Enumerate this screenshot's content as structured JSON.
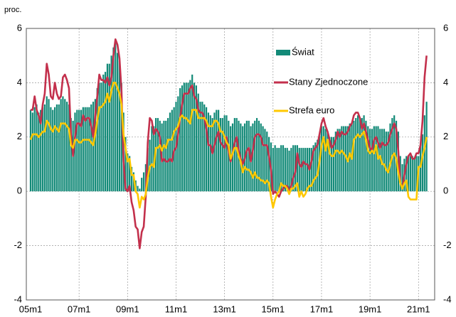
{
  "chart_data": {
    "type": "bar-line",
    "unit_label": "proc.",
    "categories": [
      "05m1",
      null,
      null,
      null,
      null,
      null,
      null,
      null,
      null,
      null,
      null,
      null,
      null,
      null,
      null,
      null,
      null,
      null,
      null,
      null,
      null,
      null,
      null,
      null,
      "07m1",
      null,
      null,
      null,
      null,
      null,
      null,
      null,
      null,
      null,
      null,
      null,
      null,
      null,
      null,
      null,
      null,
      null,
      null,
      null,
      null,
      null,
      null,
      null,
      "09m1",
      null,
      null,
      null,
      null,
      null,
      null,
      null,
      null,
      null,
      null,
      null,
      null,
      null,
      null,
      null,
      null,
      null,
      null,
      null,
      null,
      null,
      null,
      null,
      "11m1",
      null,
      null,
      null,
      null,
      null,
      null,
      null,
      null,
      null,
      null,
      null,
      null,
      null,
      null,
      null,
      null,
      null,
      null,
      null,
      null,
      null,
      null,
      null,
      "13m1",
      null,
      null,
      null,
      null,
      null,
      null,
      null,
      null,
      null,
      null,
      null,
      null,
      null,
      null,
      null,
      null,
      null,
      null,
      null,
      null,
      null,
      null,
      null,
      "15m1",
      null,
      null,
      null,
      null,
      null,
      null,
      null,
      null,
      null,
      null,
      null,
      null,
      null,
      null,
      null,
      null,
      null,
      null,
      null,
      null,
      null,
      null,
      null,
      "17m1",
      null,
      null,
      null,
      null,
      null,
      null,
      null,
      null,
      null,
      null,
      null,
      null,
      null,
      null,
      null,
      null,
      null,
      null,
      null,
      null,
      null,
      null,
      null,
      "19m1",
      null,
      null,
      null,
      null,
      null,
      null,
      null,
      null,
      null,
      null,
      null,
      null,
      null,
      null,
      null,
      null,
      null,
      null,
      null,
      null,
      null,
      null,
      null,
      "21m1",
      null,
      null,
      null,
      null
    ],
    "series": [
      {
        "name": "Świat",
        "kind": "bar",
        "color": "#138a78",
        "values": [
          3.0,
          2.9,
          3.1,
          3.2,
          2.9,
          3.0,
          3.1,
          3.2,
          3.5,
          3.4,
          3.1,
          3.0,
          3.1,
          3.2,
          3.2,
          3.4,
          3.5,
          3.4,
          3.3,
          3.2,
          2.7,
          2.6,
          2.9,
          3.0,
          3.0,
          3.0,
          3.1,
          3.1,
          3.1,
          3.1,
          3.2,
          3.3,
          3.4,
          3.8,
          4.0,
          4.0,
          4.3,
          4.4,
          4.7,
          4.7,
          5.0,
          5.3,
          5.5,
          5.1,
          4.8,
          4.0,
          2.9,
          2.0,
          1.4,
          1.3,
          0.9,
          0.7,
          0.4,
          0.2,
          0.1,
          0.5,
          0.7,
          1.0,
          1.6,
          1.9,
          2.4,
          2.4,
          2.7,
          2.7,
          2.6,
          2.5,
          2.6,
          2.6,
          2.7,
          2.9,
          3.0,
          3.1,
          3.3,
          3.5,
          3.8,
          3.9,
          4.0,
          4.0,
          4.0,
          4.1,
          4.3,
          4.0,
          3.9,
          3.6,
          3.3,
          3.3,
          3.2,
          3.1,
          2.9,
          2.8,
          2.7,
          2.9,
          3.0,
          3.0,
          2.7,
          2.7,
          2.8,
          2.8,
          2.6,
          2.4,
          2.5,
          2.7,
          2.7,
          2.6,
          2.5,
          2.4,
          2.5,
          2.6,
          2.6,
          2.4,
          2.5,
          2.6,
          2.7,
          2.6,
          2.5,
          2.4,
          2.3,
          2.2,
          2.0,
          1.8,
          1.6,
          1.7,
          1.6,
          1.6,
          1.7,
          1.7,
          1.6,
          1.6,
          1.5,
          1.6,
          1.7,
          1.7,
          1.7,
          1.6,
          1.6,
          1.6,
          1.6,
          1.6,
          1.6,
          1.6,
          1.7,
          1.8,
          1.9,
          2.1,
          2.4,
          2.4,
          2.3,
          2.2,
          2.0,
          2.0,
          2.0,
          2.2,
          2.3,
          2.3,
          2.4,
          2.4,
          2.4,
          2.4,
          2.5,
          2.5,
          2.6,
          2.7,
          2.8,
          2.7,
          2.7,
          2.8,
          2.6,
          2.4,
          2.3,
          2.3,
          2.4,
          2.4,
          2.4,
          2.3,
          2.3,
          2.3,
          2.2,
          2.2,
          2.5,
          2.7,
          2.8,
          2.6,
          2.2,
          1.3,
          1.0,
          1.2,
          1.3,
          1.3,
          1.3,
          1.3,
          1.2,
          1.3,
          1.3,
          1.7,
          2.1,
          2.8,
          3.3
        ]
      },
      {
        "name": "Stany Zjednoczone",
        "kind": "line",
        "color": "#c3304c",
        "values": [
          3.0,
          3.0,
          3.5,
          3.0,
          2.8,
          2.5,
          3.2,
          3.6,
          4.7,
          4.3,
          3.5,
          3.4,
          4.0,
          3.6,
          3.4,
          3.5,
          4.2,
          4.3,
          4.1,
          3.8,
          2.1,
          1.3,
          2.0,
          2.5,
          2.5,
          2.4,
          2.8,
          2.6,
          2.7,
          2.7,
          2.4,
          2.0,
          2.8,
          3.5,
          4.3,
          4.1,
          4.1,
          4.0,
          4.2,
          3.9,
          4.2,
          5.0,
          5.6,
          5.4,
          4.9,
          3.7,
          1.1,
          0.1,
          0.0,
          0.2,
          -0.4,
          -0.7,
          -1.3,
          -1.4,
          -2.1,
          -1.5,
          -1.3,
          -0.2,
          1.8,
          2.7,
          2.6,
          2.1,
          2.3,
          2.2,
          2.0,
          1.1,
          1.2,
          1.1,
          1.1,
          1.2,
          1.1,
          1.5,
          1.6,
          2.1,
          2.7,
          3.2,
          3.6,
          3.6,
          3.6,
          3.8,
          3.9,
          3.5,
          3.4,
          3.0,
          2.9,
          2.9,
          2.7,
          2.3,
          1.7,
          1.7,
          1.4,
          1.7,
          2.0,
          2.2,
          1.8,
          1.7,
          1.6,
          2.0,
          1.5,
          1.1,
          1.4,
          1.8,
          2.0,
          1.5,
          1.2,
          1.0,
          1.2,
          1.5,
          1.6,
          1.1,
          1.5,
          2.0,
          2.1,
          2.1,
          2.0,
          1.7,
          1.7,
          1.7,
          1.3,
          0.8,
          -0.1,
          0.0,
          -0.1,
          -0.2,
          0.0,
          0.1,
          0.2,
          0.2,
          0.0,
          0.2,
          0.5,
          0.7,
          1.4,
          1.0,
          0.9,
          1.1,
          1.0,
          1.0,
          0.8,
          1.1,
          1.5,
          1.6,
          1.7,
          2.1,
          2.5,
          2.7,
          2.4,
          2.2,
          1.9,
          1.6,
          1.7,
          1.9,
          2.2,
          2.0,
          2.2,
          2.1,
          2.1,
          2.2,
          2.4,
          2.5,
          2.8,
          2.9,
          2.9,
          2.7,
          2.3,
          2.5,
          2.2,
          1.9,
          1.6,
          1.5,
          1.9,
          2.0,
          1.8,
          1.6,
          1.8,
          1.7,
          1.7,
          1.8,
          2.1,
          2.3,
          2.5,
          2.3,
          1.5,
          0.3,
          0.1,
          0.6,
          1.0,
          1.3,
          1.4,
          1.2,
          1.2,
          1.4,
          1.4,
          1.7,
          2.6,
          4.2,
          5.0
        ]
      },
      {
        "name": "Strefa euro",
        "kind": "line",
        "color": "#ffc800",
        "values": [
          1.9,
          2.1,
          2.1,
          2.1,
          2.0,
          2.1,
          2.2,
          2.2,
          2.6,
          2.5,
          2.3,
          2.2,
          2.4,
          2.3,
          2.2,
          2.5,
          2.5,
          2.5,
          2.4,
          2.3,
          1.7,
          1.6,
          1.9,
          1.9,
          1.8,
          1.8,
          1.9,
          1.9,
          1.9,
          1.9,
          1.8,
          1.7,
          2.1,
          2.6,
          3.1,
          3.1,
          3.2,
          3.3,
          3.6,
          3.3,
          3.7,
          4.0,
          4.0,
          3.8,
          3.6,
          3.2,
          2.1,
          1.6,
          1.1,
          1.2,
          0.6,
          0.6,
          0.0,
          -0.1,
          -0.6,
          -0.2,
          -0.3,
          -0.1,
          0.5,
          0.9,
          1.0,
          0.9,
          1.6,
          1.6,
          1.7,
          1.5,
          1.7,
          1.6,
          1.9,
          1.9,
          1.9,
          2.2,
          2.3,
          2.4,
          2.7,
          2.8,
          2.7,
          2.7,
          2.6,
          2.5,
          3.0,
          3.0,
          3.0,
          2.7,
          2.7,
          2.7,
          2.7,
          2.6,
          2.4,
          2.4,
          2.4,
          2.6,
          2.6,
          2.5,
          2.2,
          2.2,
          2.0,
          1.8,
          1.7,
          1.2,
          1.4,
          1.6,
          1.6,
          1.3,
          1.1,
          0.7,
          0.9,
          0.8,
          0.8,
          0.7,
          0.5,
          0.7,
          0.5,
          0.5,
          0.4,
          0.4,
          0.3,
          0.4,
          0.3,
          -0.2,
          -0.6,
          -0.3,
          -0.1,
          0.0,
          0.3,
          0.2,
          0.2,
          0.1,
          -0.1,
          0.1,
          0.1,
          0.2,
          0.3,
          -0.2,
          0.0,
          -0.2,
          -0.1,
          0.1,
          0.2,
          0.2,
          0.4,
          0.5,
          0.6,
          1.1,
          1.7,
          2.0,
          1.5,
          1.9,
          1.4,
          1.3,
          1.3,
          1.5,
          1.5,
          1.4,
          1.5,
          1.4,
          1.3,
          1.1,
          1.4,
          1.2,
          1.9,
          2.0,
          2.1,
          2.0,
          2.1,
          2.2,
          1.9,
          1.5,
          1.4,
          1.5,
          1.4,
          1.7,
          1.2,
          1.3,
          1.0,
          1.0,
          0.8,
          0.7,
          1.0,
          1.3,
          1.4,
          1.2,
          0.7,
          0.3,
          0.1,
          0.3,
          0.4,
          -0.2,
          -0.3,
          -0.3,
          -0.3,
          -0.3,
          0.9,
          0.9,
          1.3,
          1.6,
          2.0
        ]
      }
    ],
    "ylim": [
      -4,
      6
    ],
    "yticks": [
      -4,
      -2,
      0,
      2,
      4,
      6
    ],
    "grid": true
  }
}
